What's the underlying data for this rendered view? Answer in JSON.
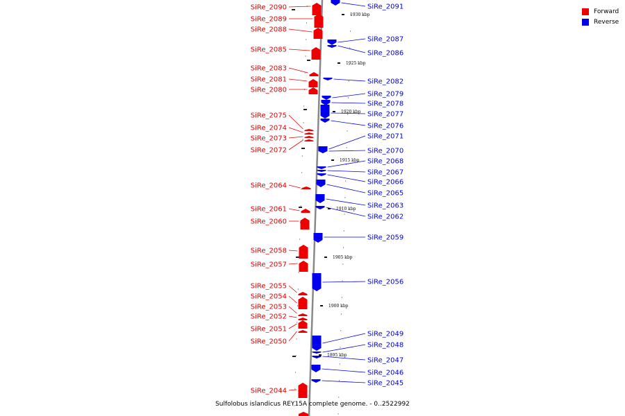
{
  "caption": "Sulfolobus islandicus REY15A complete genome. - 0..2522992",
  "legend": {
    "items": [
      {
        "label": "Forward",
        "color": "#ee0000"
      },
      {
        "label": "Reverse",
        "color": "#0000ee"
      }
    ]
  },
  "colors": {
    "forward": "#ee0000",
    "reverse": "#0000ee",
    "backbone": "#888888"
  },
  "ticks": [
    "1930 kbp",
    "1925 kbp",
    "1920 kbp",
    "1915 kbp",
    "1910 kbp",
    "1905 kbp",
    "1900 kbp",
    "1895 kbp"
  ],
  "forward_genes": [
    "SiRe_2090",
    "SiRe_2089",
    "SiRe_2088",
    "SiRe_2085",
    "SiRe_2083",
    "SiRe_2081",
    "SiRe_2080",
    "SiRe_2075",
    "SiRe_2074",
    "SiRe_2073",
    "SiRe_2072",
    "SiRe_2064",
    "SiRe_2061",
    "SiRe_2060",
    "SiRe_2058",
    "SiRe_2057",
    "SiRe_2055",
    "SiRe_2054",
    "SiRe_2053",
    "SiRe_2052",
    "SiRe_2051",
    "SiRe_2050",
    "SiRe_2044"
  ],
  "reverse_genes": [
    "SiRe_2091",
    "SiRe_2087",
    "SiRe_2086",
    "SiRe_2082",
    "SiRe_2079",
    "SiRe_2078",
    "SiRe_2077",
    "SiRe_2076",
    "SiRe_2071",
    "SiRe_2070",
    "SiRe_2068",
    "SiRe_2067",
    "SiRe_2066",
    "SiRe_2065",
    "SiRe_2063",
    "SiRe_2062",
    "SiRe_2059",
    "SiRe_2056",
    "SiRe_2049",
    "SiRe_2048",
    "SiRe_2047",
    "SiRe_2046",
    "SiRe_2045"
  ]
}
